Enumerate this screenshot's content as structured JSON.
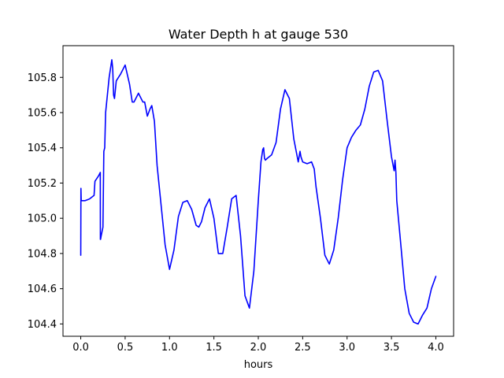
{
  "chart_data": {
    "type": "line",
    "title": "Water Depth h at gauge 530",
    "xlabel": "hours",
    "ylabel": "",
    "xlim": [
      -0.2,
      4.2
    ],
    "ylim": [
      104.33,
      105.98
    ],
    "xticks": [
      0.0,
      0.5,
      1.0,
      1.5,
      2.0,
      2.5,
      3.0,
      3.5,
      4.0
    ],
    "xtick_labels": [
      "0.0",
      "0.5",
      "1.0",
      "1.5",
      "2.0",
      "2.5",
      "3.0",
      "3.5",
      "4.0"
    ],
    "yticks": [
      104.4,
      104.6,
      104.8,
      105.0,
      105.2,
      105.4,
      105.6,
      105.8
    ],
    "ytick_labels": [
      "104.4",
      "104.6",
      "104.8",
      "105.0",
      "105.2",
      "105.4",
      "105.6",
      "105.8"
    ],
    "grid": false,
    "series": [
      {
        "color": "#0000ff",
        "x": [
          0.0,
          0.002,
          0.005,
          0.01,
          0.05,
          0.1,
          0.15,
          0.16,
          0.2,
          0.22,
          0.221,
          0.223,
          0.23,
          0.25,
          0.26,
          0.27,
          0.28,
          0.3,
          0.32,
          0.35,
          0.36,
          0.37,
          0.38,
          0.4,
          0.45,
          0.5,
          0.55,
          0.58,
          0.6,
          0.65,
          0.7,
          0.72,
          0.75,
          0.78,
          0.8,
          0.83,
          0.86,
          0.9,
          0.95,
          1.0,
          1.05,
          1.1,
          1.15,
          1.2,
          1.25,
          1.3,
          1.33,
          1.36,
          1.4,
          1.45,
          1.5,
          1.55,
          1.6,
          1.65,
          1.7,
          1.75,
          1.8,
          1.85,
          1.9,
          1.95,
          2.0,
          2.03,
          2.05,
          2.06,
          2.07,
          2.08,
          2.1,
          2.15,
          2.2,
          2.25,
          2.3,
          2.35,
          2.4,
          2.45,
          2.47,
          2.48,
          2.5,
          2.55,
          2.6,
          2.63,
          2.65,
          2.7,
          2.75,
          2.8,
          2.85,
          2.9,
          2.95,
          3.0,
          3.05,
          3.1,
          3.15,
          3.2,
          3.25,
          3.3,
          3.35,
          3.4,
          3.45,
          3.5,
          3.53,
          3.54,
          3.55,
          3.56,
          3.6,
          3.65,
          3.7,
          3.75,
          3.8,
          3.85,
          3.9,
          3.95,
          4.0
        ],
        "y": [
          104.79,
          105.17,
          105.1,
          105.1,
          105.1,
          105.11,
          105.13,
          105.21,
          105.24,
          105.26,
          104.88,
          104.88,
          104.9,
          104.95,
          105.38,
          105.4,
          105.6,
          105.7,
          105.8,
          105.9,
          105.85,
          105.7,
          105.68,
          105.78,
          105.82,
          105.87,
          105.76,
          105.66,
          105.66,
          105.71,
          105.66,
          105.66,
          105.58,
          105.62,
          105.64,
          105.55,
          105.3,
          105.1,
          104.85,
          104.71,
          104.82,
          105.01,
          105.09,
          105.1,
          105.05,
          104.96,
          104.95,
          104.98,
          105.06,
          105.11,
          105.0,
          104.8,
          104.8,
          104.95,
          105.11,
          105.13,
          104.9,
          104.56,
          104.49,
          104.7,
          105.1,
          105.32,
          105.39,
          105.4,
          105.34,
          105.33,
          105.34,
          105.36,
          105.43,
          105.62,
          105.73,
          105.68,
          105.45,
          105.32,
          105.38,
          105.35,
          105.32,
          105.31,
          105.32,
          105.28,
          105.18,
          105.0,
          104.79,
          104.74,
          104.82,
          105.0,
          105.22,
          105.4,
          105.46,
          105.5,
          105.53,
          105.62,
          105.75,
          105.83,
          105.84,
          105.78,
          105.56,
          105.35,
          105.27,
          105.33,
          105.26,
          105.1,
          104.88,
          104.6,
          104.46,
          104.41,
          104.4,
          104.45,
          104.49,
          104.6,
          104.67
        ]
      }
    ]
  }
}
